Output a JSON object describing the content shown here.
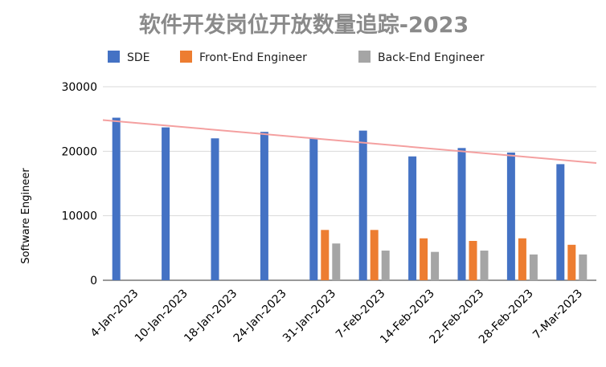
{
  "chart_data": {
    "type": "bar",
    "title": "软件开发岗位开放数量追踪-2023",
    "xlabel": "",
    "ylabel": "Software Engineer",
    "ylim": [
      0,
      30000
    ],
    "yticks": [
      0,
      10000,
      20000,
      30000
    ],
    "ytick_labels": [
      "0",
      "10000",
      "20000",
      "30000"
    ],
    "grid": true,
    "legend_position": "top",
    "categories": [
      "4-Jan-2023",
      "10-Jan-2023",
      "18-Jan-2023",
      "24-Jan-2023",
      "31-Jan-2023",
      "7-Feb-2023",
      "14-Feb-2023",
      "22-Feb-2023",
      "28-Feb-2023",
      "7-Mar-2023"
    ],
    "series": [
      {
        "name": "SDE",
        "color": "#4472C4",
        "values": [
          25200,
          23700,
          22000,
          23000,
          22000,
          23200,
          19200,
          20500,
          19800,
          18000
        ]
      },
      {
        "name": "Front-End Engineer",
        "color": "#ED7D31",
        "values": [
          null,
          null,
          null,
          null,
          7800,
          7800,
          6500,
          6100,
          6500,
          5500
        ]
      },
      {
        "name": "Back-End Engineer",
        "color": "#A5A5A5",
        "values": [
          null,
          null,
          null,
          null,
          5700,
          4600,
          4400,
          4600,
          4000,
          4000
        ]
      }
    ],
    "trendline": {
      "series": "SDE",
      "color": "#F4A0A0"
    }
  }
}
